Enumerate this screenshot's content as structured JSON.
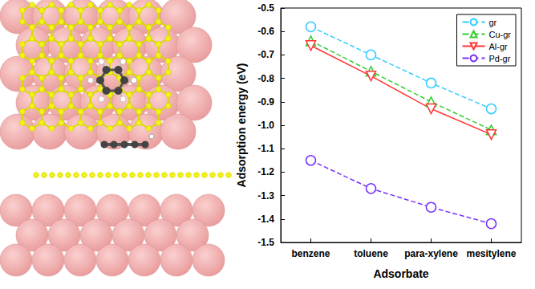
{
  "chart_data": {
    "type": "line",
    "x_label": "Adsorbate",
    "y_label": "Adsorption energy (eV)",
    "categories": [
      "benzene",
      "toluene",
      "para-xylene",
      "mesitylene"
    ],
    "series": [
      {
        "name": "gr",
        "color": "#33ccff",
        "marker": "circle",
        "line_style": "dashed",
        "values": [
          -0.58,
          -0.7,
          -0.82,
          -0.93
        ]
      },
      {
        "name": "Cu-gr",
        "color": "#33cc33",
        "marker": "triangle",
        "line_style": "dashed",
        "values": [
          -0.64,
          -0.77,
          -0.9,
          -1.02
        ]
      },
      {
        "name": "Al-gr",
        "color": "#ff3333",
        "marker": "triangle-down",
        "line_style": "solid",
        "values": [
          -0.66,
          -0.79,
          -0.93,
          -1.04
        ]
      },
      {
        "name": "Pd-gr",
        "color": "#7733ff",
        "marker": "circle",
        "line_style": "dashed",
        "values": [
          -1.15,
          -1.27,
          -1.35,
          -1.42
        ]
      }
    ],
    "ylim": [
      -1.5,
      -0.5
    ],
    "yticks": [
      -1.5,
      -1.4,
      -1.3,
      -1.2,
      -1.1,
      {
        "value": -1,
        "label": "-1.0"
      },
      -0.9,
      -0.8,
      -0.7,
      -0.6,
      -0.5
    ],
    "grid": false,
    "legend": "upper right"
  }
}
